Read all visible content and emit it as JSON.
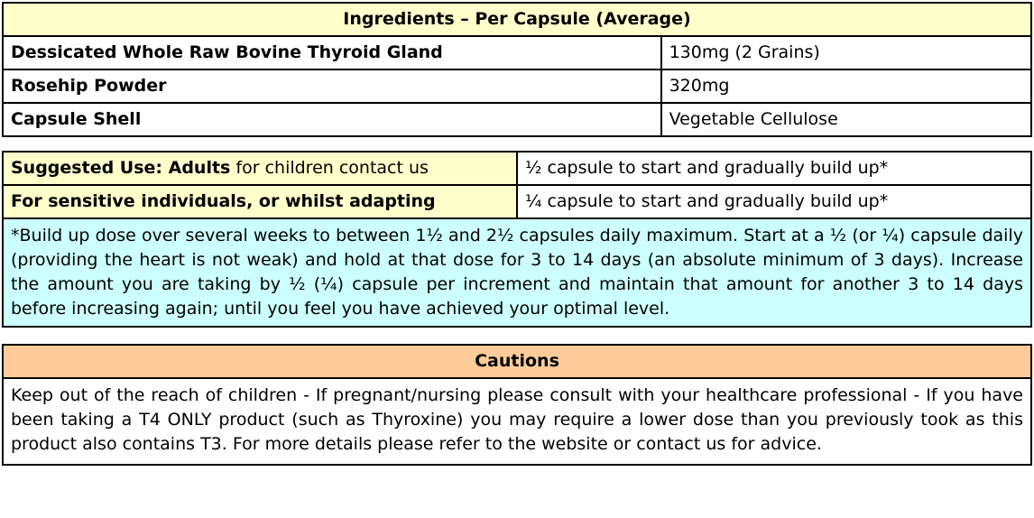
{
  "ingredients_table": {
    "header": "Ingredients – Per Capsule (Average)",
    "rows": [
      {
        "name": "Dessicated Whole Raw Bovine Thyroid Gland",
        "value": "130mg (2 Grains)"
      },
      {
        "name": "Rosehip Powder",
        "value": "320mg"
      },
      {
        "name": "Capsule Shell",
        "value": "Vegetable Cellulose"
      }
    ]
  },
  "usage_table": {
    "rows": [
      {
        "label_bold": "Suggested Use: Adults",
        "label_rest": " for children contact us",
        "value": "½ capsule to start and gradually build up*"
      },
      {
        "label_bold": "For sensitive individuals, or whilst adapting",
        "label_rest": "",
        "value": "¼ capsule to start and gradually build up*"
      }
    ],
    "note": "*Build up dose over several weeks to between 1½ and 2½ capsules daily maximum. Start at a ½ (or ¼) capsule daily (providing the heart is not weak) and hold at that dose for 3 to 14 days (an absolute minimum of 3 days). Increase the amount you are taking by ½ (¼) capsule per increment and maintain that amount for another 3 to 14 days before increasing again; until you feel you have achieved your optimal level."
  },
  "cautions": {
    "header": "Cautions",
    "body": "Keep out of the reach of children - If pregnant/nursing please consult with your healthcare professional - If you have been taking a T4 ONLY product (such as Thyroxine) you may require a lower dose than you previously took as this product also contains T3. For more details please refer to the website or contact us for advice."
  },
  "colors": {
    "header-yellow": "#FFFFCC",
    "note-cyan": "#CCFFFF",
    "cautions-orange": "#FFCC99",
    "border-black": "#000000",
    "text-black": "#000000"
  }
}
